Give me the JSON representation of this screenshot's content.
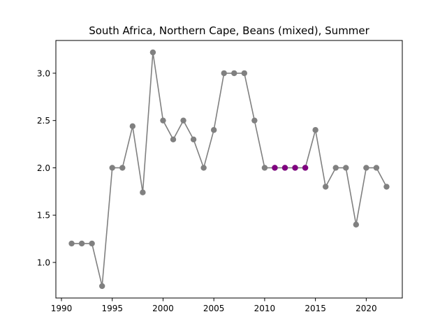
{
  "chart_data": {
    "type": "line",
    "title": "South Africa, Northern Cape, Beans (mixed), Summer",
    "xlabel": "",
    "ylabel": "",
    "xlim": [
      1989.45,
      2023.55
    ],
    "ylim": [
      0.624,
      3.346
    ],
    "xticks": [
      1990,
      1995,
      2000,
      2005,
      2010,
      2015,
      2020
    ],
    "yticks": [
      1.0,
      1.5,
      2.0,
      2.5,
      3.0
    ],
    "grid": false,
    "series": [
      {
        "color": "#808080",
        "x": [
          1991,
          1992,
          1993,
          1994,
          1995,
          1996,
          1997,
          1998,
          1999,
          2000,
          2001,
          2002,
          2003,
          2004,
          2005,
          2006,
          2007,
          2008,
          2009,
          2010,
          2011,
          2012,
          2013,
          2014,
          2015,
          2016,
          2017,
          2018,
          2019,
          2020,
          2021,
          2022
        ],
        "y": [
          1.2,
          1.2,
          1.2,
          0.75,
          2.0,
          2.0,
          2.44,
          1.74,
          3.22,
          2.5,
          2.3,
          2.5,
          2.3,
          2.0,
          2.4,
          3.0,
          3.0,
          3.0,
          2.5,
          2.0,
          2.0,
          2.0,
          2.0,
          2.0,
          2.4,
          1.8,
          2.0,
          2.0,
          1.4,
          2.0,
          2.0,
          1.8
        ]
      }
    ],
    "highlighted_points": {
      "color": "#800080",
      "x": [
        2011,
        2012,
        2013,
        2014
      ],
      "y": [
        2.0,
        2.0,
        2.0,
        2.0
      ]
    }
  }
}
